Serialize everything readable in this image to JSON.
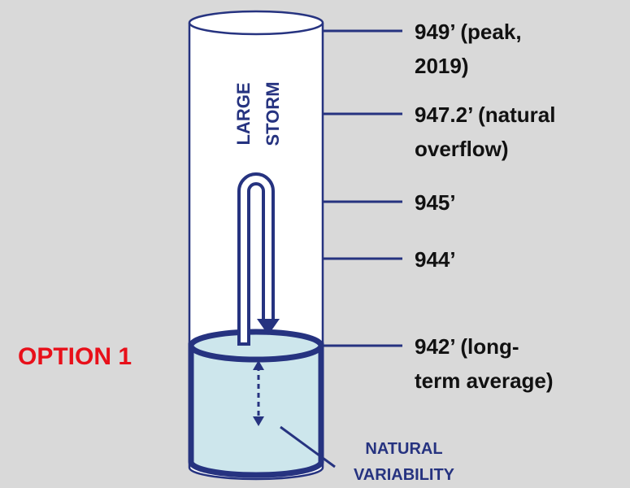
{
  "diagram": {
    "option": "OPTION 1",
    "storm_label": [
      "LARGE",
      "STORM"
    ],
    "levels": [
      {
        "lines": [
          "949’ (peak,",
          "2019)"
        ]
      },
      {
        "lines": [
          "947.2’ (natural",
          "overflow)"
        ]
      },
      {
        "lines": [
          "945’"
        ]
      },
      {
        "lines": [
          "944’"
        ]
      },
      {
        "lines": [
          "942’ (long-",
          "term average)"
        ]
      }
    ],
    "variability_label": [
      "NATURAL",
      "VARIABILITY"
    ]
  }
}
